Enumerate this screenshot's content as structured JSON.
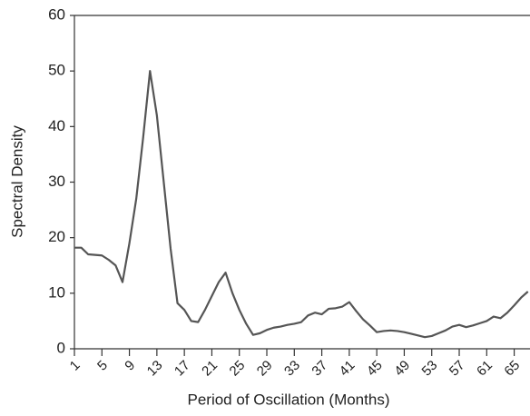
{
  "chart_data": {
    "type": "line",
    "xlabel": "Period of Oscillation (Months)",
    "ylabel": "Spectral Density",
    "x": [
      1,
      2,
      3,
      4,
      5,
      6,
      7,
      8,
      9,
      10,
      11,
      12,
      13,
      14,
      15,
      16,
      17,
      18,
      19,
      20,
      21,
      22,
      23,
      24,
      25,
      26,
      27,
      28,
      29,
      30,
      31,
      32,
      33,
      34,
      35,
      36,
      37,
      38,
      39,
      40,
      41,
      42,
      43,
      44,
      45,
      46,
      47,
      48,
      49,
      50,
      51,
      52,
      53,
      54,
      55,
      56,
      57,
      58,
      59,
      60,
      61,
      62,
      63,
      64,
      65,
      66,
      67
    ],
    "series": [
      {
        "color": "#555555",
        "values": [
          18.2,
          18.2,
          17,
          16.9,
          16.8,
          16,
          15,
          12,
          19,
          27,
          38,
          50,
          42,
          30,
          18,
          8.2,
          7,
          5,
          4.8,
          7,
          9.5,
          12,
          13.7,
          10,
          7,
          4.5,
          2.5,
          2.8,
          3.4,
          3.8,
          4,
          4.3,
          4.5,
          4.8,
          6,
          6.5,
          6.2,
          7.2,
          7.3,
          7.6,
          8.4,
          6.8,
          5.3,
          4.2,
          3,
          3.2,
          3.3,
          3.2,
          3,
          2.7,
          2.4,
          2.1,
          2.3,
          2.8,
          3.3,
          4,
          4.3,
          3.9,
          4.2,
          4.6,
          5,
          5.8,
          5.5,
          6.5,
          7.8,
          9.2,
          10.3
        ]
      }
    ],
    "xlim": [
      1,
      67.3
    ],
    "xticks": [
      1,
      5,
      9,
      13,
      17,
      21,
      25,
      29,
      33,
      37,
      41,
      45,
      49,
      53,
      57,
      61,
      65
    ],
    "ylim": [
      0,
      60
    ],
    "yticks": [
      0,
      10,
      20,
      30,
      40,
      50,
      60
    ]
  }
}
